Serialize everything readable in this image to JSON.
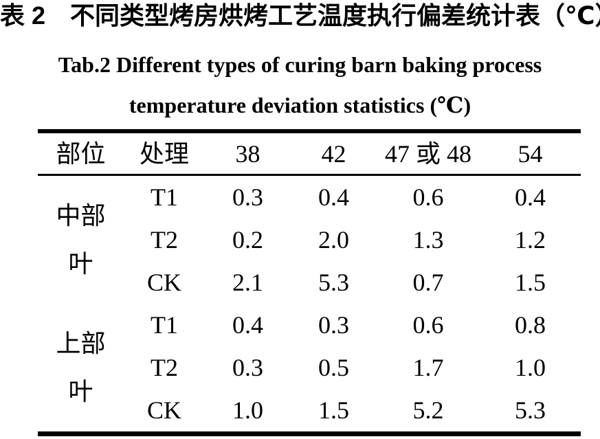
{
  "page": {
    "title_cn": "表 2　不同类型烤房烘烤工艺温度执行偏差统计表（℃）",
    "title_en_line1": "Tab.2 Different types of curing barn baking process",
    "title_en_line2": "temperature deviation statistics (℃)"
  },
  "table": {
    "headers": [
      "部位",
      "处理",
      "38",
      "42",
      "47 或 48",
      "54"
    ],
    "groups": [
      {
        "label_line1": "中部",
        "label_line2": "叶",
        "rows": [
          {
            "treatment": "T1",
            "values": [
              "0.3",
              "0.4",
              "0.6",
              "0.4"
            ]
          },
          {
            "treatment": "T2",
            "values": [
              "0.2",
              "2.0",
              "1.3",
              "1.2"
            ]
          },
          {
            "treatment": "CK",
            "values": [
              "2.1",
              "5.3",
              "0.7",
              "1.5"
            ]
          }
        ]
      },
      {
        "label_line1": "上部",
        "label_line2": "叶",
        "rows": [
          {
            "treatment": "T1",
            "values": [
              "0.4",
              "0.3",
              "0.6",
              "0.8"
            ]
          },
          {
            "treatment": "T2",
            "values": [
              "0.3",
              "0.5",
              "1.7",
              "1.0"
            ]
          },
          {
            "treatment": "CK",
            "values": [
              "1.0",
              "1.5",
              "5.2",
              "5.3"
            ]
          }
        ]
      }
    ]
  }
}
